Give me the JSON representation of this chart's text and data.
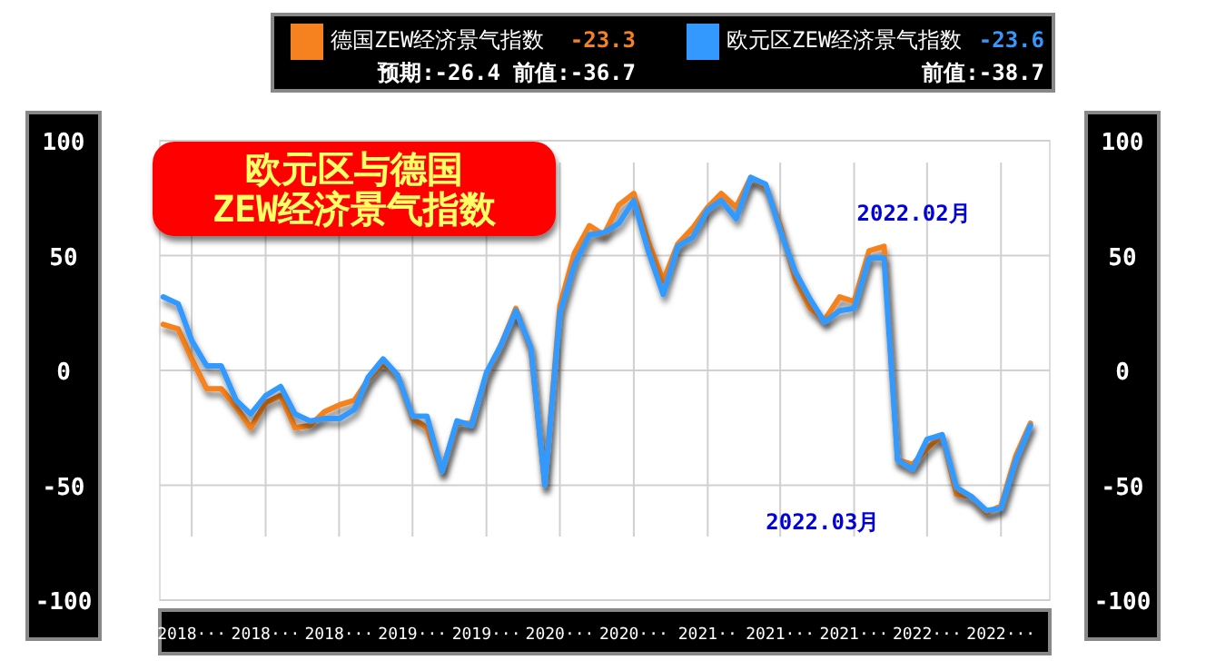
{
  "chart_data": {
    "type": "line",
    "title": "欧元区与德国\nZEW经济景气指数",
    "x": [
      "2018-01",
      "2018-02",
      "2018-03",
      "2018-04",
      "2018-05",
      "2018-06",
      "2018-07",
      "2018-08",
      "2018-09",
      "2018-10",
      "2018-11",
      "2018-12",
      "2019-01",
      "2019-02",
      "2019-03",
      "2019-04",
      "2019-05",
      "2019-06",
      "2019-07",
      "2019-08",
      "2019-09",
      "2019-10",
      "2019-11",
      "2019-12",
      "2020-01",
      "2020-02",
      "2020-03",
      "2020-04",
      "2020-05",
      "2020-06",
      "2020-07",
      "2020-08",
      "2020-09",
      "2020-10",
      "2020-11",
      "2020-12",
      "2021-01",
      "2021-02",
      "2021-03",
      "2021-04",
      "2021-05",
      "2021-06",
      "2021-07",
      "2021-08",
      "2021-09",
      "2021-10",
      "2021-11",
      "2021-12",
      "2022-01",
      "2022-02",
      "2022-03",
      "2022-04",
      "2022-05",
      "2022-06",
      "2022-07",
      "2022-08",
      "2022-09",
      "2022-10",
      "2022-11",
      "2022-12"
    ],
    "series": [
      {
        "name": "德国ZEW经济景气指数",
        "color": "#f5821f",
        "values": [
          20,
          18,
          5,
          -8,
          -8,
          -16,
          -25,
          -14,
          -11,
          -25,
          -24,
          -18,
          -15,
          -13,
          -4,
          3,
          -2,
          -21,
          -25,
          -44,
          -23,
          -23,
          -2,
          11,
          27,
          9,
          -50,
          28,
          51,
          63,
          59,
          72,
          77,
          56,
          39,
          55,
          62,
          71,
          77,
          71,
          84,
          80,
          63,
          40,
          27,
          22,
          32,
          30,
          52,
          54,
          -39,
          -41,
          -34,
          -28,
          -54,
          -55,
          -62,
          -59,
          -37,
          -23
        ]
      },
      {
        "name": "欧元区ZEW经济景气指数",
        "color": "#3399ff",
        "values": [
          32,
          29,
          13,
          2,
          2,
          -13,
          -19,
          -11,
          -7,
          -19,
          -22,
          -21,
          -21,
          -17,
          -3,
          5,
          -2,
          -20,
          -20,
          -44,
          -22,
          -24,
          -1,
          11,
          26,
          10,
          -50,
          25,
          46,
          59,
          60,
          64,
          74,
          52,
          33,
          54,
          58,
          70,
          74,
          66,
          84,
          81,
          61,
          43,
          31,
          21,
          26,
          27,
          49,
          49,
          -39,
          -43,
          -30,
          -28,
          -51,
          -55,
          -61,
          -60,
          -39,
          -24
        ]
      }
    ],
    "xlim": [
      "2017-12-25",
      "2023-01-10"
    ],
    "xticks": [
      {
        "value": "2018-03-01",
        "label": "2018···"
      },
      {
        "value": "2018-08-01",
        "label": "2018···"
      },
      {
        "value": "2018-12-31",
        "label": "2018···"
      },
      {
        "value": "2019-06-01",
        "label": "2019···"
      },
      {
        "value": "2019-11-01",
        "label": "2019···"
      },
      {
        "value": "2020-04-01",
        "label": "2020···"
      },
      {
        "value": "2020-09-01",
        "label": "2020···"
      },
      {
        "value": "2021-02-01",
        "label": "2021··"
      },
      {
        "value": "2021-07-01",
        "label": "2021···"
      },
      {
        "value": "2021-12-01",
        "label": "2021···"
      },
      {
        "value": "2022-05-01",
        "label": "2022···"
      },
      {
        "value": "2022-10-01",
        "label": "2022···"
      }
    ],
    "ylim": [
      -100,
      100
    ],
    "yticks": [
      -100,
      -50,
      0,
      50,
      100
    ],
    "y2lim": [
      -100,
      100
    ],
    "y2ticks": [
      -100,
      -50,
      0,
      50,
      100
    ],
    "grid": true,
    "legend": "top",
    "marker": "none",
    "line_style": "solid",
    "annotations": [
      "-23.3",
      "预期:-26.4 前值:-36.7",
      "-23.6",
      "前值:-38.7",
      {
        "text": "2022.02月",
        "x": "2022-02",
        "y": 54
      },
      {
        "text": "2022.03月",
        "x": "2022-03",
        "y": -39
      }
    ]
  }
}
